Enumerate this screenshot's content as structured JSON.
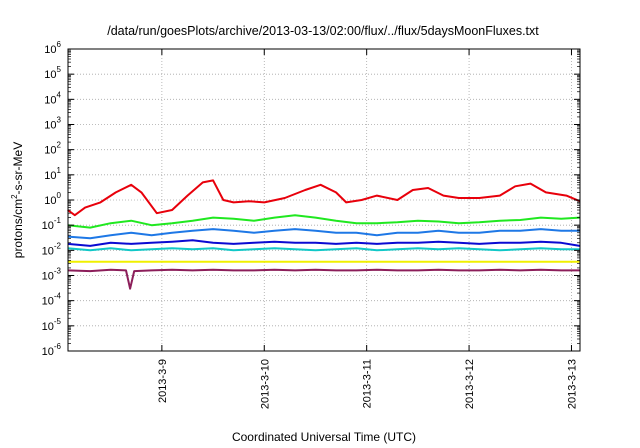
{
  "chart_data": {
    "type": "line",
    "title": "/data/run/goesPlots/archive/2013-03-13/02:00/flux/../flux/5daysMoonFluxes.txt",
    "xlabel": "Coordinated Universal Time (UTC)",
    "ylabel_parts": {
      "base": "protons/cm",
      "sup": "2",
      "rest": "-s-sr-MeV"
    },
    "y_scale": "log",
    "ylim_exponents": [
      -6,
      6
    ],
    "y_tick_labels": [
      {
        "base": "10",
        "exp": "-6"
      },
      {
        "base": "10",
        "exp": "-5"
      },
      {
        "base": "10",
        "exp": "-4"
      },
      {
        "base": "10",
        "exp": "-3"
      },
      {
        "base": "10",
        "exp": "-2"
      },
      {
        "base": "10",
        "exp": "-1"
      },
      {
        "base": "10",
        "exp": "0"
      },
      {
        "base": "10",
        "exp": "1"
      },
      {
        "base": "10",
        "exp": "2"
      },
      {
        "base": "10",
        "exp": "3"
      },
      {
        "base": "10",
        "exp": "4"
      },
      {
        "base": "10",
        "exp": "5"
      },
      {
        "base": "10",
        "exp": "6"
      }
    ],
    "x_tick_labels": [
      "2013-3-9",
      "2013-3-10",
      "2013-3-11",
      "2013-3-12",
      "2013-3-13"
    ],
    "xlim": [
      "2013-03-08 02:00",
      "2013-03-13 02:00"
    ],
    "grid": true,
    "series": [
      {
        "color": "#e8000b",
        "x_days": [
          8.08,
          8.15,
          8.25,
          8.4,
          8.55,
          8.7,
          8.8,
          8.95,
          9.1,
          9.25,
          9.4,
          9.5,
          9.6,
          9.7,
          9.85,
          10.0,
          10.2,
          10.4,
          10.55,
          10.7,
          10.8,
          10.95,
          11.1,
          11.3,
          11.45,
          11.6,
          11.75,
          11.9,
          12.1,
          12.3,
          12.45,
          12.6,
          12.75,
          12.95,
          13.08
        ],
        "values": [
          0.4,
          0.25,
          0.5,
          0.8,
          2.0,
          4.0,
          2.0,
          0.3,
          0.4,
          1.5,
          5.0,
          6.0,
          1.0,
          0.8,
          0.9,
          0.8,
          1.2,
          2.5,
          4.0,
          2.0,
          0.8,
          1.0,
          1.5,
          1.0,
          2.5,
          3.0,
          1.5,
          1.2,
          1.2,
          1.5,
          3.5,
          4.5,
          2.0,
          1.5,
          0.9
        ]
      },
      {
        "color": "#20e820",
        "x_days": [
          8.08,
          8.3,
          8.5,
          8.7,
          8.9,
          9.1,
          9.3,
          9.5,
          9.7,
          9.9,
          10.1,
          10.3,
          10.5,
          10.7,
          10.9,
          11.1,
          11.3,
          11.5,
          11.7,
          11.9,
          12.1,
          12.3,
          12.5,
          12.7,
          12.9,
          13.08
        ],
        "values": [
          0.1,
          0.08,
          0.12,
          0.15,
          0.1,
          0.12,
          0.15,
          0.2,
          0.18,
          0.15,
          0.2,
          0.25,
          0.2,
          0.15,
          0.12,
          0.12,
          0.13,
          0.15,
          0.14,
          0.12,
          0.13,
          0.15,
          0.16,
          0.2,
          0.18,
          0.2
        ]
      },
      {
        "color": "#1e78e6",
        "x_days": [
          8.08,
          8.3,
          8.5,
          8.7,
          8.9,
          9.1,
          9.3,
          9.5,
          9.7,
          9.9,
          10.1,
          10.3,
          10.5,
          10.7,
          10.9,
          11.1,
          11.3,
          11.5,
          11.7,
          11.9,
          12.1,
          12.3,
          12.5,
          12.7,
          12.9,
          13.08
        ],
        "values": [
          0.035,
          0.03,
          0.04,
          0.05,
          0.04,
          0.05,
          0.06,
          0.07,
          0.06,
          0.05,
          0.06,
          0.07,
          0.06,
          0.05,
          0.05,
          0.04,
          0.05,
          0.05,
          0.06,
          0.05,
          0.05,
          0.06,
          0.06,
          0.07,
          0.06,
          0.06
        ]
      },
      {
        "color": "#0a0ad2",
        "x_days": [
          8.08,
          8.3,
          8.5,
          8.7,
          8.9,
          9.1,
          9.3,
          9.5,
          9.7,
          9.9,
          10.1,
          10.3,
          10.5,
          10.7,
          10.9,
          11.1,
          11.3,
          11.5,
          11.7,
          11.9,
          12.1,
          12.3,
          12.5,
          12.7,
          12.9,
          13.08
        ],
        "values": [
          0.018,
          0.015,
          0.02,
          0.018,
          0.02,
          0.022,
          0.025,
          0.02,
          0.018,
          0.02,
          0.022,
          0.02,
          0.02,
          0.018,
          0.02,
          0.018,
          0.02,
          0.02,
          0.022,
          0.02,
          0.018,
          0.02,
          0.02,
          0.022,
          0.02,
          0.015
        ]
      },
      {
        "color": "#10c8c8",
        "x_days": [
          8.08,
          8.3,
          8.5,
          8.7,
          8.9,
          9.1,
          9.3,
          9.5,
          9.7,
          9.9,
          10.1,
          10.3,
          10.5,
          10.7,
          10.9,
          11.1,
          11.3,
          11.5,
          11.7,
          11.9,
          12.1,
          12.3,
          12.5,
          12.7,
          12.9,
          13.08
        ],
        "values": [
          0.012,
          0.01,
          0.012,
          0.01,
          0.011,
          0.012,
          0.011,
          0.012,
          0.01,
          0.011,
          0.012,
          0.011,
          0.01,
          0.011,
          0.012,
          0.01,
          0.011,
          0.012,
          0.011,
          0.012,
          0.011,
          0.01,
          0.011,
          0.012,
          0.011,
          0.011
        ]
      },
      {
        "color": "#f0f000",
        "x_days": [
          8.08,
          8.3,
          8.5,
          8.7,
          8.9,
          9.1,
          9.3,
          9.5,
          9.7,
          9.9,
          10.1,
          10.3,
          10.5,
          10.7,
          10.9,
          11.1,
          11.3,
          11.5,
          11.7,
          11.9,
          12.1,
          12.3,
          12.5,
          12.7,
          12.9,
          13.08
        ],
        "values": [
          0.0035,
          0.0035,
          0.0035,
          0.0035,
          0.0035,
          0.0035,
          0.0035,
          0.0035,
          0.0035,
          0.0035,
          0.0035,
          0.0035,
          0.0035,
          0.0035,
          0.0035,
          0.0035,
          0.0035,
          0.0035,
          0.0035,
          0.0035,
          0.0035,
          0.0035,
          0.0035,
          0.0035,
          0.0035,
          0.0035
        ]
      },
      {
        "color": "#8c1e5a",
        "x_days": [
          8.08,
          8.3,
          8.5,
          8.65,
          8.69,
          8.73,
          8.9,
          9.1,
          9.3,
          9.5,
          9.7,
          9.9,
          10.1,
          10.3,
          10.5,
          10.7,
          10.9,
          11.1,
          11.3,
          11.5,
          11.7,
          11.9,
          12.1,
          12.3,
          12.5,
          12.7,
          12.9,
          13.08
        ],
        "values": [
          0.0016,
          0.0015,
          0.0017,
          0.0016,
          0.0003,
          0.0015,
          0.0016,
          0.0017,
          0.0016,
          0.0017,
          0.0016,
          0.0016,
          0.0017,
          0.0016,
          0.0017,
          0.0016,
          0.0016,
          0.0017,
          0.0016,
          0.0016,
          0.0017,
          0.0016,
          0.0016,
          0.0017,
          0.0016,
          0.0017,
          0.0016,
          0.0016
        ]
      }
    ]
  }
}
